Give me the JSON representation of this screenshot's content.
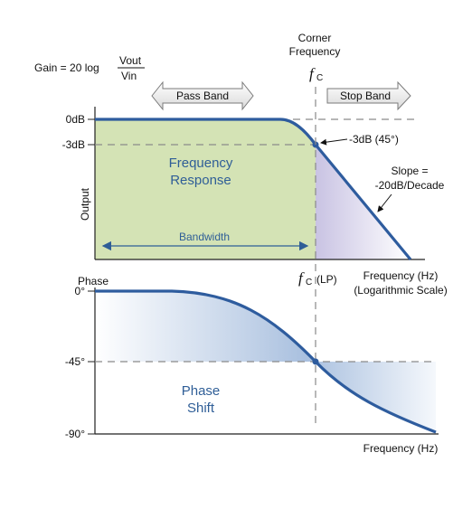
{
  "gain_formula": {
    "prefix": "Gain = 20 log",
    "numerator": "Vout",
    "denominator": "Vin"
  },
  "corner": {
    "line1": "Corner",
    "line2": "Frequency",
    "symbol": "f",
    "subscript": "C",
    "lp_symbol": "f",
    "lp_subscript": "C",
    "lp_suffix": "(LP)"
  },
  "bands": {
    "pass_band": "Pass Band",
    "stop_band": "Stop Band"
  },
  "magnitude_plot": {
    "y_tick_0db": "0dB",
    "y_tick_3db": "-3dB",
    "y_axis_label": "Output",
    "region_label_line1": "Frequency",
    "region_label_line2": "Response",
    "bandwidth_label": "Bandwidth",
    "corner_annotation": "-3dB (45°)",
    "slope_line1": "Slope =",
    "slope_line2": "-20dB/Decade",
    "x_axis_line1": "Frequency (Hz)",
    "x_axis_line2": "(Logarithmic Scale)"
  },
  "phase_plot": {
    "y_axis_label": "Phase",
    "y_tick_0": "0°",
    "y_tick_45": "-45°",
    "y_tick_90": "-90°",
    "region_label_line1": "Phase",
    "region_label_line2": "Shift",
    "x_axis_label": "Frequency (Hz)"
  },
  "colors": {
    "curve": "#2e5c9e",
    "passband_fill": "#d4e3b5",
    "stopband_fill": "#d8d4ea",
    "phase_fill": "#b9cbe4",
    "label_blue": "#2f5e97",
    "dashed": "#8a8a8a"
  }
}
